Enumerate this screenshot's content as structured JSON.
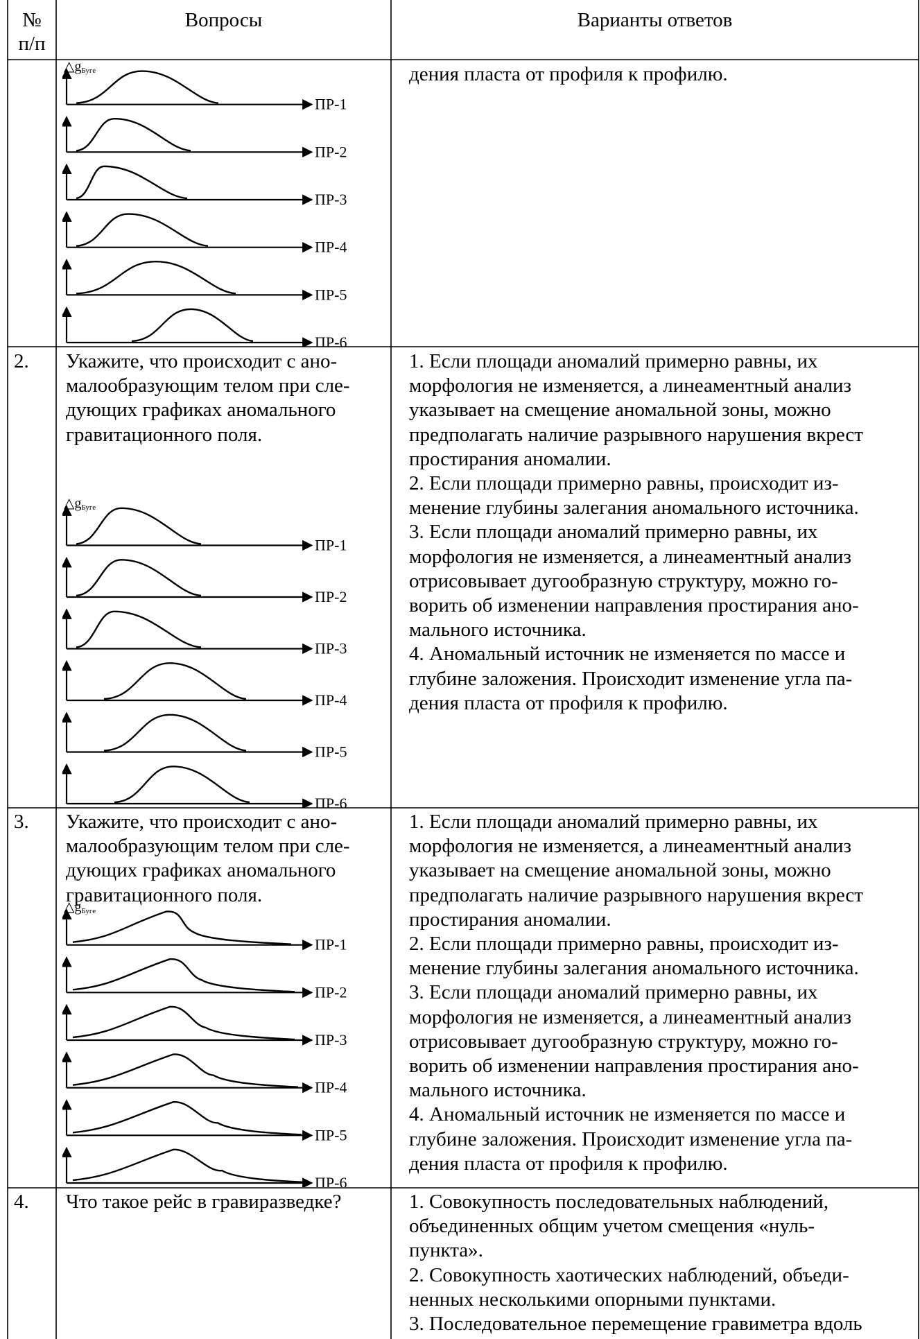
{
  "header": {
    "num_line1": "№",
    "num_line2": "п/п",
    "questions": "Вопросы",
    "answers": "Варианты ответов"
  },
  "figure": {
    "axis_label": "△g",
    "axis_subscript": "Буге",
    "profiles": [
      "ПР-1",
      "ПР-2",
      "ПР-3",
      "ПР-4",
      "ПР-5",
      "ПР-6"
    ]
  },
  "rows": [
    {
      "num": "",
      "answer_lines": [
        "дения пласта от профиля к профилю."
      ]
    },
    {
      "num": "2.",
      "question_lines": [
        "Укажите, что происходит с ано-",
        "малообразующим телом при сле-",
        "дующих графиках аномального",
        "гравитационного поля."
      ],
      "answer_lines": [
        "1. Если площади аномалий примерно равны, их",
        "морфология не  изменяется, а линеаментный анализ",
        "указывает на смещение аномальной зоны, можно",
        "предполагать наличие разрывного нарушения вкрест",
        "простирания аномалии.",
        "2. Если площади примерно равны, происходит  из-",
        "менение глубины залегания аномального источника.",
        "3. Если площади аномалий примерно равны, их",
        "морфология не  изменяется, а линеаментный анализ",
        "отрисовывает дугообразную структуру,  можно го-",
        "ворить об изменении направления простирания ано-",
        "мального источника.",
        "4. Аномальный источник не изменяется по массе и",
        "глубине заложения. Происходит изменение угла па-",
        "дения пласта от профиля к профилю."
      ]
    },
    {
      "num": "3.",
      "question_lines": [
        "Укажите, что происходит с ано-",
        "малообразующим телом при сле-",
        "дующих графиках аномального",
        "гравитационного поля."
      ],
      "answer_lines": [
        "1. Если площади аномалий примерно равны, их",
        "морфология не  изменяется, а линеаментный анализ",
        "указывает на смещение аномальной зоны, можно",
        "предполагать наличие разрывного нарушения вкрест",
        "простирания аномалии.",
        "2. Если площади примерно равны, происходит  из-",
        "менение глубины залегания аномального источника.",
        "3. Если площади аномалий примерно равны, их",
        "морфология не  изменяется, а линеаментный анализ",
        "отрисовывает дугообразную структуру,  можно го-",
        "ворить об изменении направления простирания ано-",
        "мального источника.",
        "4. Аномальный источник не изменяется по массе и",
        "глубине заложения. Происходит изменение угла па-",
        "дения пласта от профиля к профилю."
      ]
    },
    {
      "num": "4.",
      "question_lines": [
        "Что такое рейс в гравиразведке?"
      ],
      "answer_lines": [
        "1. Совокупность последовательных наблюдений,",
        "объединенных общим учетом смещения «нуль-",
        "пункта».",
        "2. Совокупность хаотических наблюдений, объеди-",
        "ненных несколькими опорными пунктами.",
        "3. Последовательное перемещение гравиметра вдоль"
      ]
    }
  ]
}
